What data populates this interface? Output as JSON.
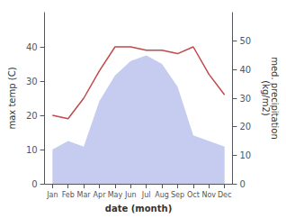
{
  "chart_data": {
    "type": "line",
    "xlabel": "date (month)",
    "ylabel": "max temp (C)",
    "y2label": "med. precipitation\n(kg/m2)",
    "categories": [
      "Jan",
      "Feb",
      "Mar",
      "Apr",
      "May",
      "Jun",
      "Jul",
      "Aug",
      "Sep",
      "Oct",
      "Nov",
      "Dec"
    ],
    "series": [
      {
        "type": "area",
        "axis": "y2",
        "color": "#c5ccf0",
        "values": [
          12,
          15,
          13,
          29,
          38,
          43,
          45,
          42,
          34,
          17,
          15,
          13
        ]
      },
      {
        "type": "line",
        "color": "#c0494a",
        "values": [
          20,
          19,
          25,
          33,
          40,
          40,
          39,
          39,
          38,
          40,
          32,
          26
        ]
      }
    ],
    "ylim": [
      0,
      50
    ],
    "yticks": [
      0,
      10,
      20,
      30,
      40
    ],
    "y2lim": [
      0,
      60
    ],
    "y2ticks": [
      0,
      10,
      20,
      30,
      40,
      50
    ],
    "grid": false
  }
}
